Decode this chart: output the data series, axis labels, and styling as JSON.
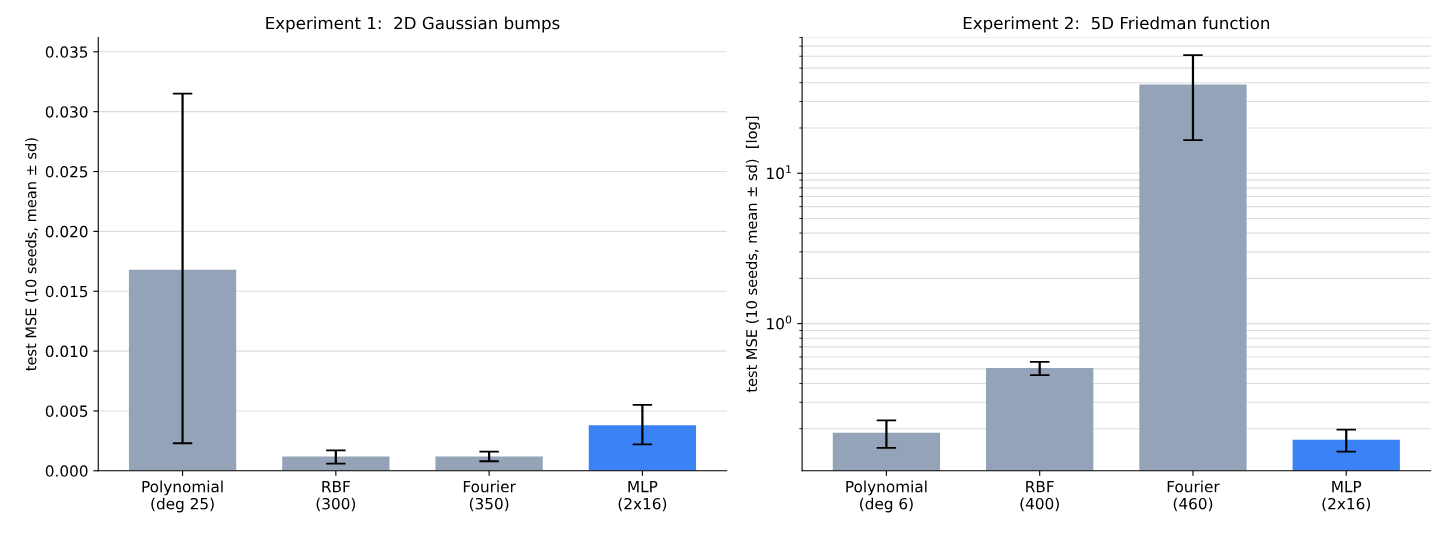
{
  "chart_data": [
    {
      "type": "bar",
      "title": "Experiment 1:  2D Gaussian bumps",
      "ylabel": "test MSE (10 seeds, mean ± sd)",
      "categories": [
        "Polynomial\n(deg 25)",
        "RBF\n(300)",
        "Fourier\n(350)",
        "MLP\n(2x16)"
      ],
      "values": [
        0.0168,
        0.0012,
        0.0012,
        0.0038
      ],
      "errors": [
        [
          0.0023,
          0.0315
        ],
        [
          0.0006,
          0.0017
        ],
        [
          0.0008,
          0.0016
        ],
        [
          0.0022,
          0.0055
        ]
      ],
      "colors": [
        "#94a3b8",
        "#94a3b8",
        "#94a3b8",
        "#3b82f6"
      ],
      "ylim": [
        0,
        0.0362
      ],
      "yticks": [
        {
          "value": 0,
          "label": "0.000"
        },
        {
          "value": 0.005,
          "label": "0.005"
        },
        {
          "value": 0.01,
          "label": "0.010"
        },
        {
          "value": 0.015,
          "label": "0.015"
        },
        {
          "value": 0.02,
          "label": "0.020"
        },
        {
          "value": 0.025,
          "label": "0.025"
        },
        {
          "value": 0.03,
          "label": "0.030"
        },
        {
          "value": 0.035,
          "label": "0.035"
        }
      ],
      "grid": "y",
      "legend": false
    },
    {
      "type": "bar",
      "title": "Experiment 2:  5D Friedman function",
      "ylabel": "test MSE (10 seeds, mean ± sd)  [log]",
      "categories": [
        "Polynomial\n(deg 6)",
        "RBF\n(400)",
        "Fourier\n(460)",
        "MLP\n(2x16)"
      ],
      "values": [
        0.188,
        0.507,
        38.9,
        0.169
      ],
      "errors": [
        [
          0.149,
          0.227
        ],
        [
          0.455,
          0.556
        ],
        [
          16.6,
          61
        ],
        [
          0.141,
          0.197
        ]
      ],
      "colors": [
        "#94a3b8",
        "#94a3b8",
        "#94a3b8",
        "#3b82f6"
      ],
      "log": true,
      "ylim": [
        0.105,
        80
      ],
      "yticks": [
        {
          "value": 1,
          "label": "10$^{0}$"
        },
        {
          "value": 10,
          "label": "10$^{1}$"
        }
      ],
      "grid": "y",
      "legend": false
    }
  ]
}
